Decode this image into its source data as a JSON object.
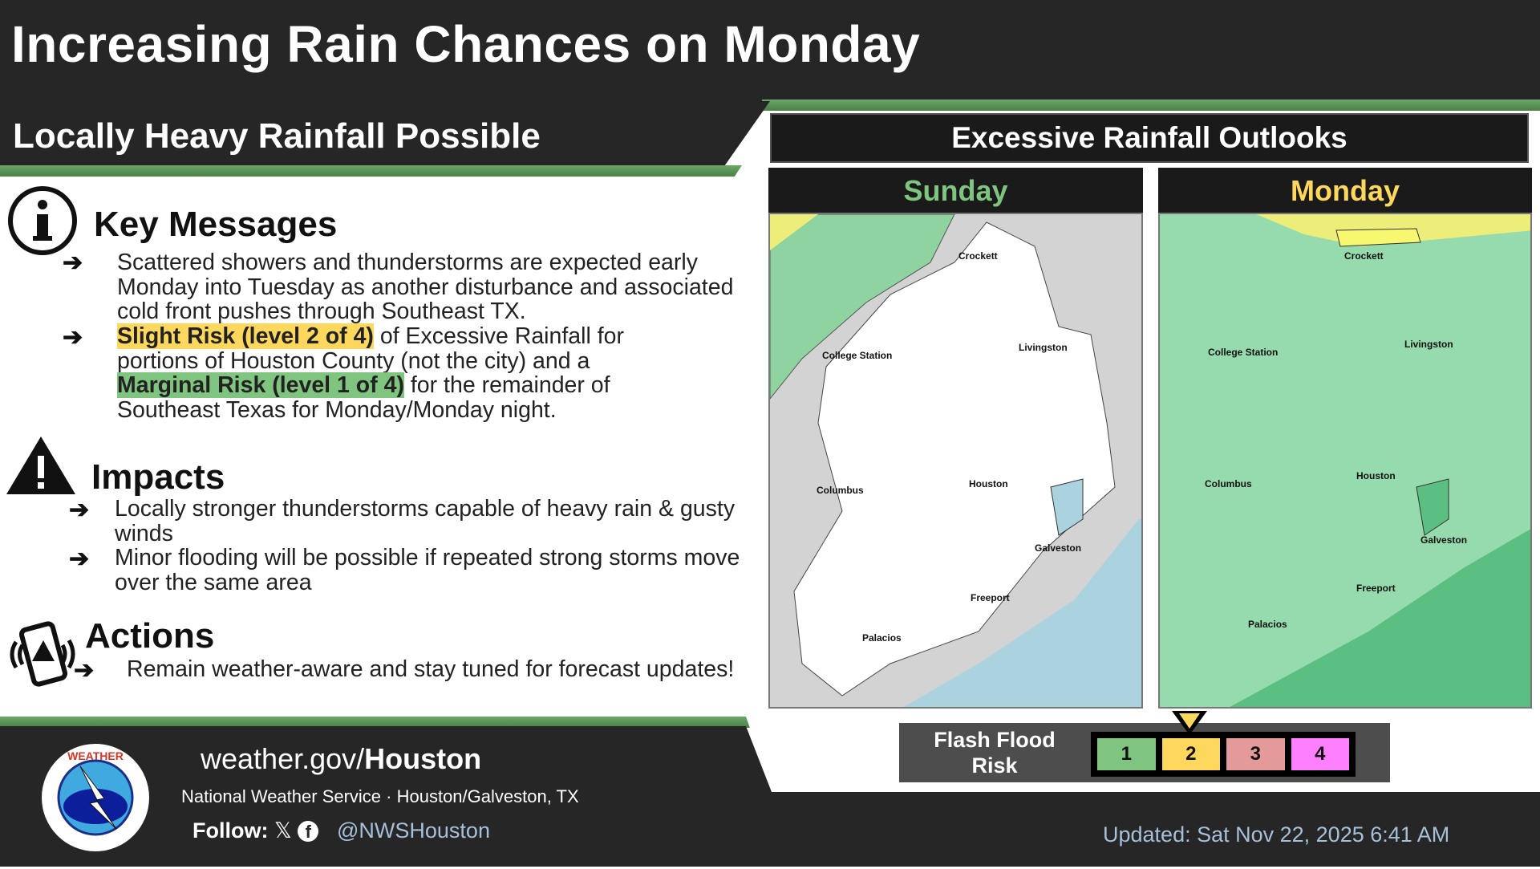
{
  "header": {
    "title": "Increasing Rain Chances on Monday",
    "subtitle": "Locally Heavy Rainfall Possible"
  },
  "key_messages": {
    "heading": "Key Messages",
    "bullets": [
      {
        "text": "Scattered showers and thunderstorms are expected early Monday into Tuesday as another disturbance and associated cold front pushes through Southeast TX."
      },
      {
        "hl1": "Slight Risk (level 2 of 4)",
        "t1": " of Excessive Rainfall for portions of Houston County (not the city) and a ",
        "hl2": "Marginal Risk (level 1 of 4)",
        "t2": " for the remainder of Southeast Texas for Monday/Monday night."
      }
    ]
  },
  "impacts": {
    "heading": "Impacts",
    "bullets": [
      "Locally stronger thunderstorms capable of heavy rain & gusty winds",
      "Minor flooding will be possible if repeated strong storms move over the same area"
    ]
  },
  "actions": {
    "heading": "Actions",
    "bullets": [
      "Remain weather-aware and stay tuned for forecast updates!"
    ]
  },
  "outlooks": {
    "title": "Excessive Rainfall Outlooks",
    "days": [
      {
        "label": "Sunday",
        "color": "#7fc47f"
      },
      {
        "label": "Monday",
        "color": "#fdd85d"
      }
    ],
    "cities": [
      "Crockett",
      "College Station",
      "Livingston",
      "Columbus",
      "Houston",
      "Galveston",
      "Freeport",
      "Palacios"
    ]
  },
  "legend": {
    "label": "Flash Flood Risk",
    "selected": 2,
    "levels": [
      {
        "n": "1",
        "color": "#7fc47f"
      },
      {
        "n": "2",
        "color": "#fdd85d"
      },
      {
        "n": "3",
        "color": "#e59a9a"
      },
      {
        "n": "4",
        "color": "#ff80ff"
      }
    ]
  },
  "footer": {
    "url_prefix": "weather.gov/",
    "url_bold": "Houston",
    "office": "National Weather Service · Houston/Galveston, TX",
    "follow": "Follow:",
    "handle": "@NWSHouston",
    "updated": "Updated: Sat Nov 22, 2025 6:41 AM",
    "logo_text": "NATIONAL WEATHER SERVICE"
  }
}
